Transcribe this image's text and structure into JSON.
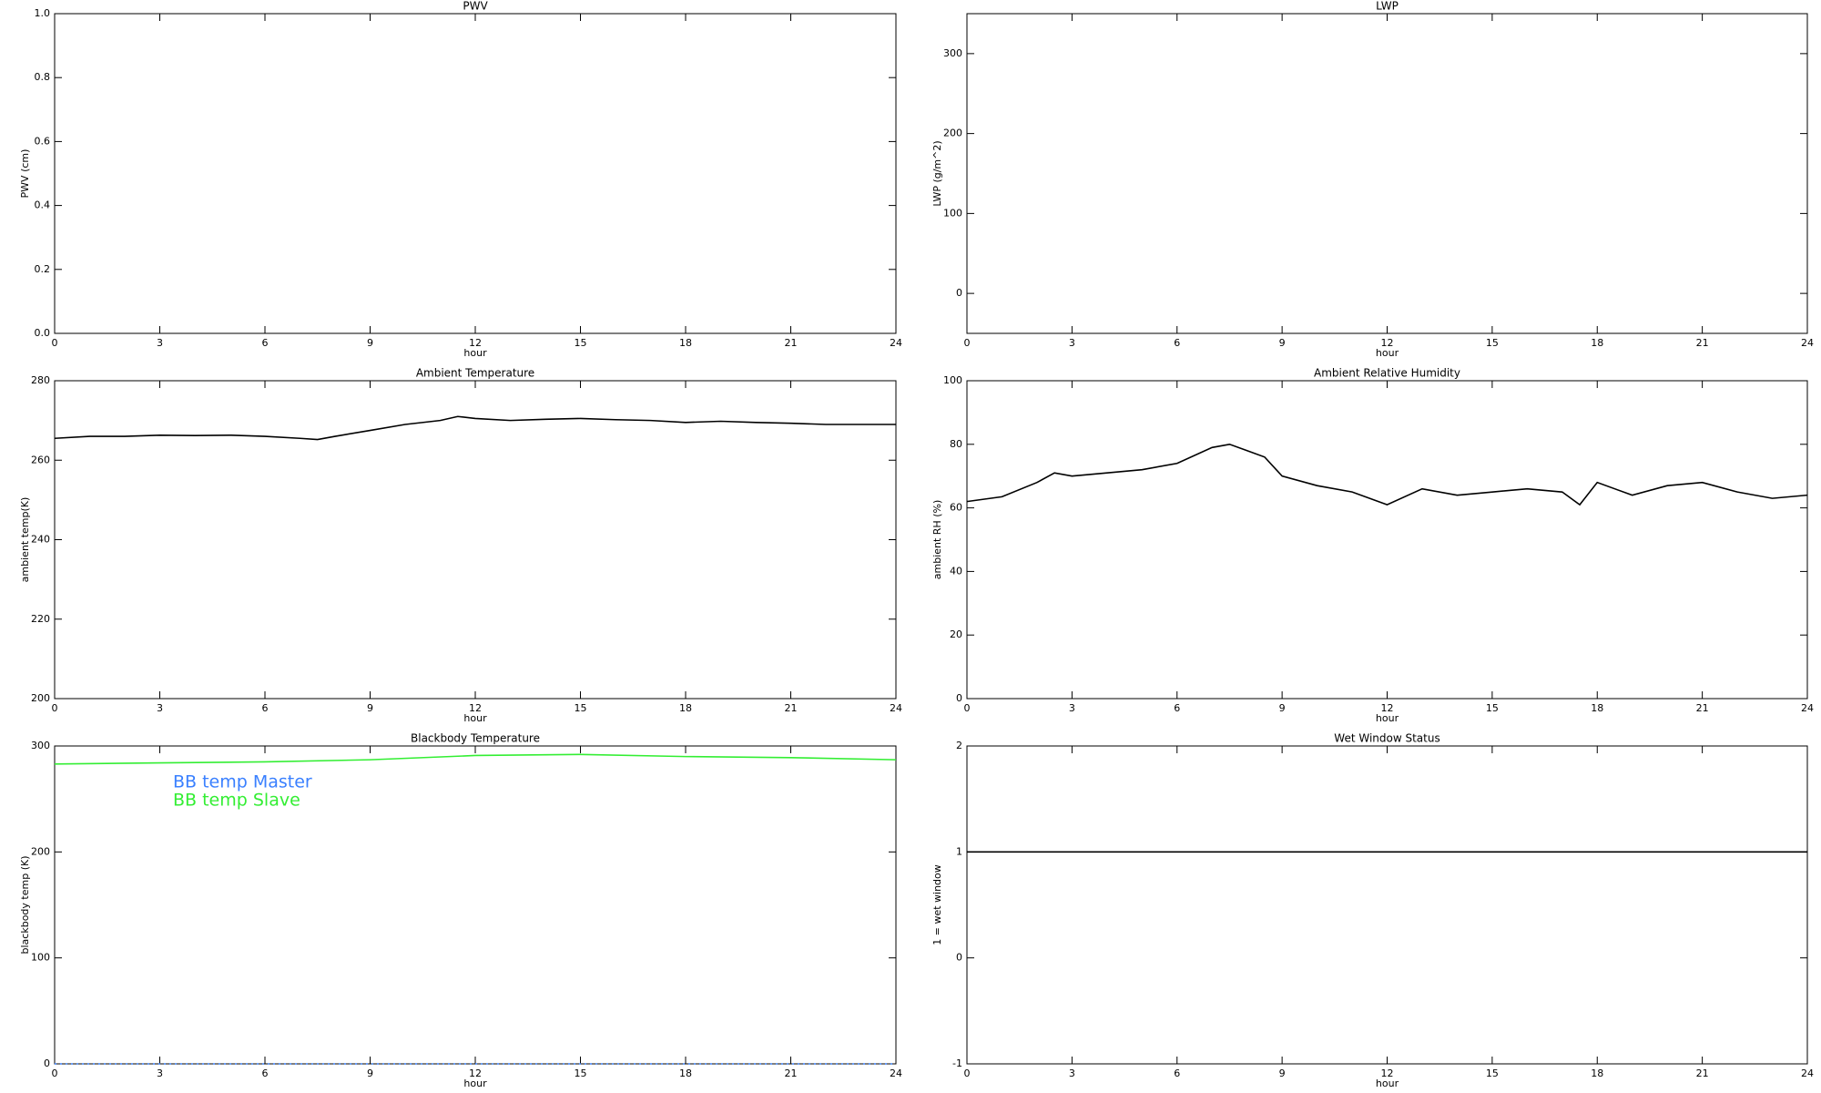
{
  "chart_data": [
    {
      "type": "line",
      "title": "PWV",
      "xlabel": "hour",
      "ylabel": "PWV (cm)",
      "xlim": [
        0,
        24
      ],
      "xticks": [
        0,
        3,
        6,
        9,
        12,
        15,
        18,
        21,
        24
      ],
      "ylim": [
        0,
        1
      ],
      "yticks": [
        {
          "value": 0,
          "label": "0.0"
        },
        0.2,
        0.4,
        0.6,
        0.8,
        {
          "value": 1,
          "label": "1.0"
        }
      ],
      "series": []
    },
    {
      "type": "line",
      "title": "LWP",
      "xlabel": "hour",
      "ylabel": "LWP (g/m^2)",
      "xlim": [
        0,
        24
      ],
      "xticks": [
        0,
        3,
        6,
        9,
        12,
        15,
        18,
        21,
        24
      ],
      "ylim": [
        -50,
        350
      ],
      "yticks": [
        0,
        100,
        200,
        300
      ],
      "series": []
    },
    {
      "type": "line",
      "title": "Ambient Temperature",
      "xlabel": "hour",
      "ylabel": "ambient temp(K)",
      "xlim": [
        0,
        24
      ],
      "xticks": [
        0,
        3,
        6,
        9,
        12,
        15,
        18,
        21,
        24
      ],
      "ylim": [
        200,
        280
      ],
      "yticks": [
        200,
        220,
        240,
        260,
        280
      ],
      "x": [
        0,
        1,
        2,
        3,
        4,
        5,
        6,
        7,
        7.5,
        8,
        9,
        10,
        11,
        11.5,
        12,
        13,
        14,
        15,
        16,
        17,
        18,
        19,
        20,
        21,
        22,
        23,
        24
      ],
      "series": [
        {
          "color": "#000000",
          "values": [
            265.5,
            266,
            266,
            266.3,
            266.2,
            266.3,
            266,
            265.5,
            265.2,
            266,
            267.5,
            269,
            270,
            271,
            270.5,
            270,
            270.3,
            270.5,
            270.2,
            270,
            269.5,
            269.8,
            269.5,
            269.3,
            269,
            269,
            269
          ]
        }
      ]
    },
    {
      "type": "line",
      "title": "Ambient Relative Humidity",
      "xlabel": "hour",
      "ylabel": "ambient RH (%)",
      "xlim": [
        0,
        24
      ],
      "xticks": [
        0,
        3,
        6,
        9,
        12,
        15,
        18,
        21,
        24
      ],
      "ylim": [
        0,
        100
      ],
      "yticks": [
        0,
        20,
        40,
        60,
        80,
        100
      ],
      "x": [
        0,
        1,
        2,
        2.5,
        3,
        4,
        5,
        6,
        7,
        7.5,
        8,
        8.5,
        9,
        10,
        11,
        12,
        13,
        14,
        15,
        16,
        17,
        17.5,
        18,
        19,
        20,
        21,
        22,
        23,
        24
      ],
      "series": [
        {
          "color": "#000000",
          "values": [
            62,
            63.5,
            68,
            71,
            70,
            71,
            72,
            74,
            79,
            80,
            78,
            76,
            70,
            67,
            65,
            61,
            66,
            64,
            65,
            66,
            65,
            61,
            68,
            64,
            67,
            68,
            65,
            63,
            64
          ]
        }
      ]
    },
    {
      "type": "line",
      "title": "Blackbody Temperature",
      "xlabel": "hour",
      "ylabel": "blackbody temp (K)",
      "xlim": [
        0,
        24
      ],
      "xticks": [
        0,
        3,
        6,
        9,
        12,
        15,
        18,
        21,
        24
      ],
      "ylim": [
        0,
        300
      ],
      "yticks": [
        0,
        100,
        200,
        300
      ],
      "legend": "upper left",
      "x": [
        0,
        3,
        6,
        9,
        12,
        15,
        18,
        21,
        24
      ],
      "series": [
        {
          "name": "BB temp Master",
          "color": "#3a80ff",
          "linestyle": "dotted",
          "values": [
            0,
            0,
            0,
            0,
            0,
            0,
            0,
            0,
            0
          ]
        },
        {
          "name": "BB temp Slave",
          "color": "#33ee33",
          "values": [
            283,
            284,
            285,
            287,
            291,
            292,
            290,
            289,
            287
          ]
        }
      ]
    },
    {
      "type": "line",
      "title": "Wet Window Status",
      "xlabel": "hour",
      "ylabel": "1 = wet window",
      "xlim": [
        0,
        24
      ],
      "xticks": [
        0,
        3,
        6,
        9,
        12,
        15,
        18,
        21,
        24
      ],
      "ylim": [
        -1,
        2
      ],
      "yticks": [
        -1,
        0,
        1,
        2
      ],
      "x": [
        0,
        24
      ],
      "series": [
        {
          "color": "#000000",
          "values": [
            1,
            1
          ]
        }
      ]
    }
  ]
}
